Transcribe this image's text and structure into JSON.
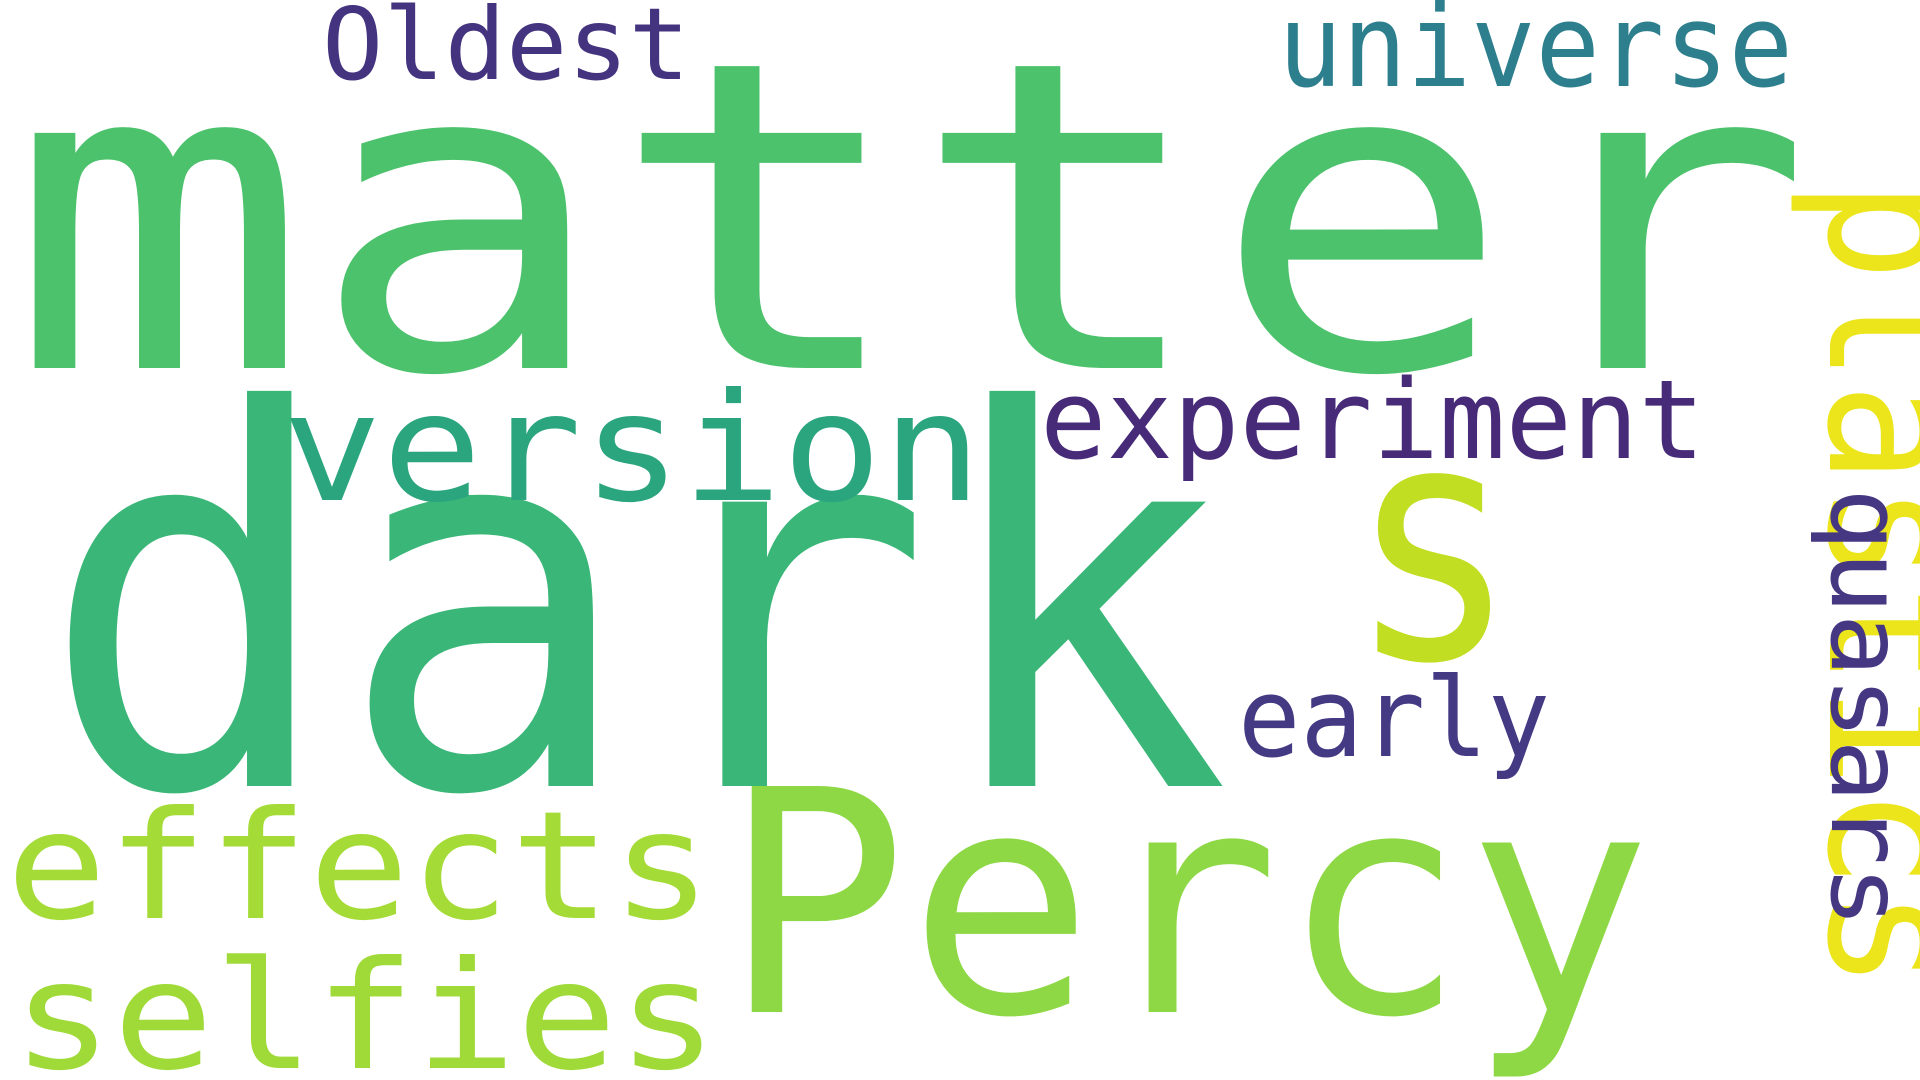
{
  "words": [
    {
      "text": "matter",
      "color": "#4cc26c",
      "orientation": "horizontal"
    },
    {
      "text": "dark",
      "color": "#3ab678",
      "orientation": "horizontal"
    },
    {
      "text": "Percy",
      "color": "#8ed845",
      "orientation": "horizontal"
    },
    {
      "text": "version",
      "color": "#2ba57e",
      "orientation": "horizontal"
    },
    {
      "text": "s",
      "color": "#c2de22",
      "orientation": "horizontal"
    },
    {
      "text": "experiment",
      "color": "#472b79",
      "orientation": "horizontal"
    },
    {
      "text": "plastics",
      "color": "#ece51b",
      "orientation": "vertical"
    },
    {
      "text": "quasars",
      "color": "#453781",
      "orientation": "vertical"
    },
    {
      "text": "universe",
      "color": "#2d7f8e",
      "orientation": "horizontal"
    },
    {
      "text": "Oldest",
      "color": "#44347f",
      "orientation": "horizontal"
    },
    {
      "text": "early",
      "color": "#443983",
      "orientation": "horizontal"
    },
    {
      "text": "effects",
      "color": "#a5db36",
      "orientation": "horizontal"
    },
    {
      "text": "selfies",
      "color": "#a0da39",
      "orientation": "horizontal"
    }
  ]
}
